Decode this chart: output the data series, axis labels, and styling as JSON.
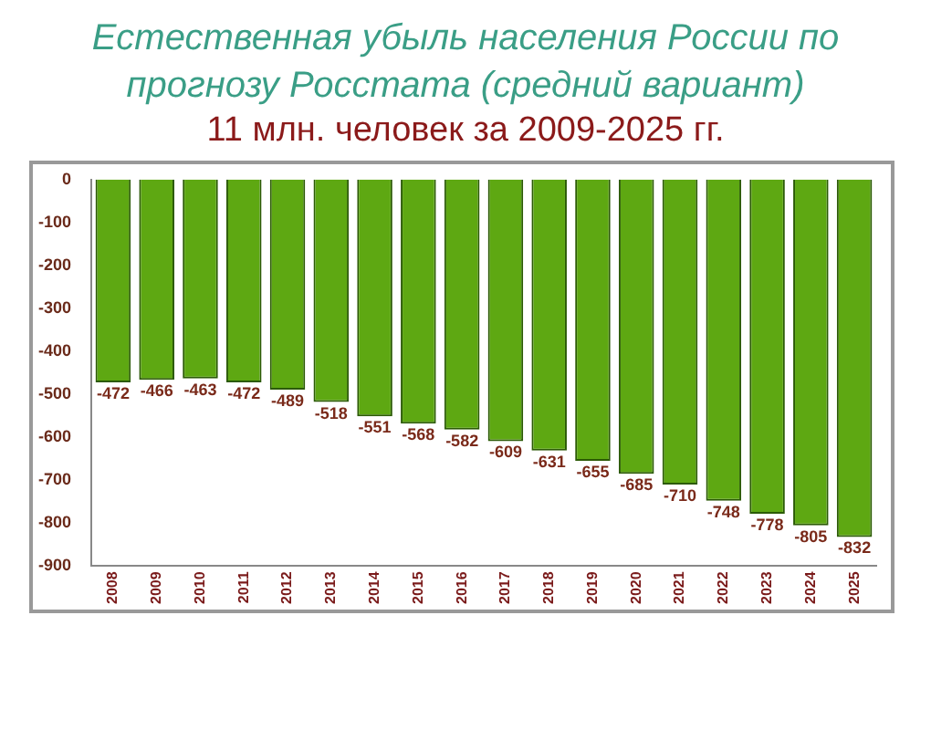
{
  "chart_data": {
    "type": "bar",
    "title": "Естественная убыль населения России по прогнозу Росстата (средний вариант)",
    "subtitle": "11 млн. человек за 2009-2025 гг.",
    "categories": [
      "2008",
      "2009",
      "2010",
      "2011",
      "2012",
      "2013",
      "2014",
      "2015",
      "2016",
      "2017",
      "2018",
      "2019",
      "2020",
      "2021",
      "2022",
      "2023",
      "2024",
      "2025"
    ],
    "values": [
      -472,
      -466,
      -463,
      -472,
      -489,
      -518,
      -551,
      -568,
      -582,
      -609,
      -631,
      -655,
      -685,
      -710,
      -748,
      -778,
      -805,
      -832
    ],
    "color": "#5ea812",
    "ylim": [
      -900,
      0
    ],
    "yticks": [
      0,
      -100,
      -200,
      -300,
      -400,
      -500,
      -600,
      -700,
      -800,
      -900
    ],
    "data_labels": true,
    "grid": false,
    "legend": false
  }
}
